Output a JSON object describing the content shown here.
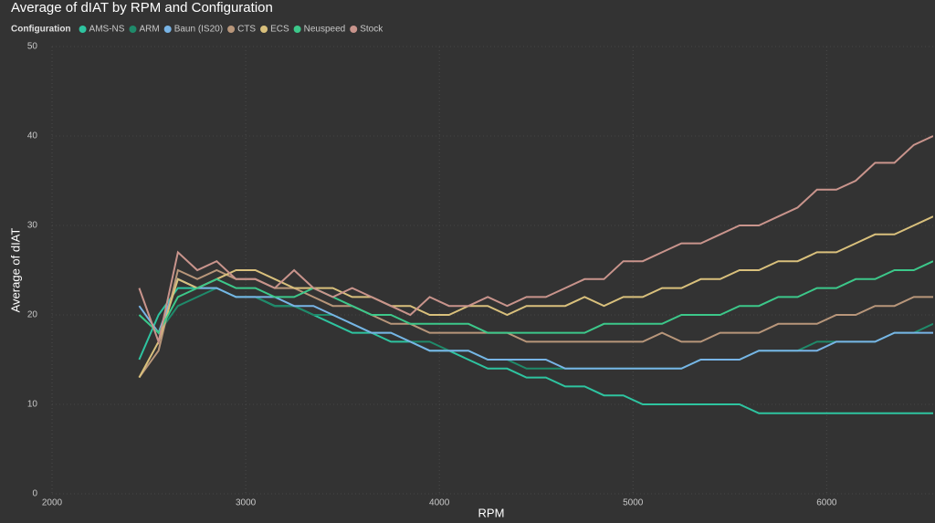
{
  "chart_data": {
    "type": "line",
    "title": "Average of dIAT by RPM and Configuration",
    "legend_title": "Configuration",
    "x_label": "RPM",
    "y_label": "Average of dIAT",
    "xlim": [
      2000,
      6550
    ],
    "xticks": [
      2000,
      3000,
      4000,
      5000,
      6000
    ],
    "ylim": [
      0,
      50
    ],
    "yticks": [
      0,
      10,
      20,
      30,
      40,
      50
    ],
    "grid": true,
    "legend": "top-left",
    "x": [
      2450,
      2550,
      2650,
      2750,
      2850,
      2950,
      3050,
      3150,
      3250,
      3350,
      3450,
      3550,
      3650,
      3750,
      3850,
      3950,
      4050,
      4150,
      4250,
      4350,
      4450,
      4550,
      4650,
      4750,
      4850,
      4950,
      5050,
      5150,
      5250,
      5350,
      5450,
      5550,
      5650,
      5750,
      5850,
      5950,
      6050,
      6150,
      6250,
      6350,
      6450,
      6550
    ],
    "series": [
      {
        "name": "AMS-NS",
        "color": "#2ec4a0",
        "values": [
          15,
          20,
          23,
          23,
          23,
          22,
          22,
          21,
          21,
          20,
          19,
          18,
          18,
          17,
          17,
          16,
          16,
          15,
          14,
          14,
          13,
          13,
          12,
          12,
          11,
          11,
          10,
          10,
          10,
          10,
          10,
          10,
          9,
          9,
          9,
          9,
          9,
          9,
          9,
          9,
          9,
          9
        ]
      },
      {
        "name": "ARM",
        "color": "#1f8a6a",
        "values": [
          20,
          18,
          21,
          22,
          23,
          22,
          22,
          21,
          21,
          20,
          20,
          19,
          18,
          18,
          17,
          17,
          16,
          16,
          15,
          15,
          14,
          14,
          14,
          14,
          14,
          14,
          14,
          14,
          14,
          15,
          15,
          15,
          16,
          16,
          16,
          17,
          17,
          17,
          17,
          18,
          18,
          19
        ]
      },
      {
        "name": "Baun (IS20)",
        "color": "#78b4e6",
        "values": [
          21,
          18,
          24,
          23,
          23,
          22,
          22,
          22,
          21,
          21,
          20,
          19,
          18,
          18,
          17,
          16,
          16,
          16,
          15,
          15,
          15,
          15,
          14,
          14,
          14,
          14,
          14,
          14,
          14,
          15,
          15,
          15,
          16,
          16,
          16,
          16,
          17,
          17,
          17,
          18,
          18,
          18
        ]
      },
      {
        "name": "CTS",
        "color": "#b8967a",
        "values": [
          13,
          16,
          25,
          24,
          25,
          24,
          24,
          23,
          23,
          22,
          21,
          21,
          20,
          19,
          19,
          18,
          18,
          18,
          18,
          18,
          17,
          17,
          17,
          17,
          17,
          17,
          17,
          18,
          17,
          17,
          18,
          18,
          18,
          19,
          19,
          19,
          20,
          20,
          21,
          21,
          22,
          22
        ]
      },
      {
        "name": "ECS",
        "color": "#d9c07c",
        "values": [
          13,
          17,
          24,
          23,
          24,
          25,
          25,
          24,
          23,
          23,
          23,
          22,
          22,
          21,
          21,
          20,
          20,
          21,
          21,
          20,
          21,
          21,
          21,
          22,
          21,
          22,
          22,
          23,
          23,
          24,
          24,
          25,
          25,
          26,
          26,
          27,
          27,
          28,
          29,
          29,
          30,
          31
        ]
      },
      {
        "name": "Neuspeed",
        "color": "#3cc88a",
        "values": [
          20,
          18,
          22,
          23,
          24,
          23,
          23,
          22,
          22,
          23,
          22,
          21,
          20,
          20,
          19,
          19,
          19,
          19,
          18,
          18,
          18,
          18,
          18,
          18,
          19,
          19,
          19,
          19,
          20,
          20,
          20,
          21,
          21,
          22,
          22,
          23,
          23,
          24,
          24,
          25,
          25,
          26
        ]
      },
      {
        "name": "Stock",
        "color": "#c9948c",
        "values": [
          23,
          17,
          27,
          25,
          26,
          24,
          24,
          23,
          25,
          23,
          22,
          23,
          22,
          21,
          20,
          22,
          21,
          21,
          22,
          21,
          22,
          22,
          23,
          24,
          24,
          26,
          26,
          27,
          28,
          28,
          29,
          30,
          30,
          31,
          32,
          34,
          34,
          35,
          37,
          37,
          39,
          40
        ]
      }
    ]
  }
}
